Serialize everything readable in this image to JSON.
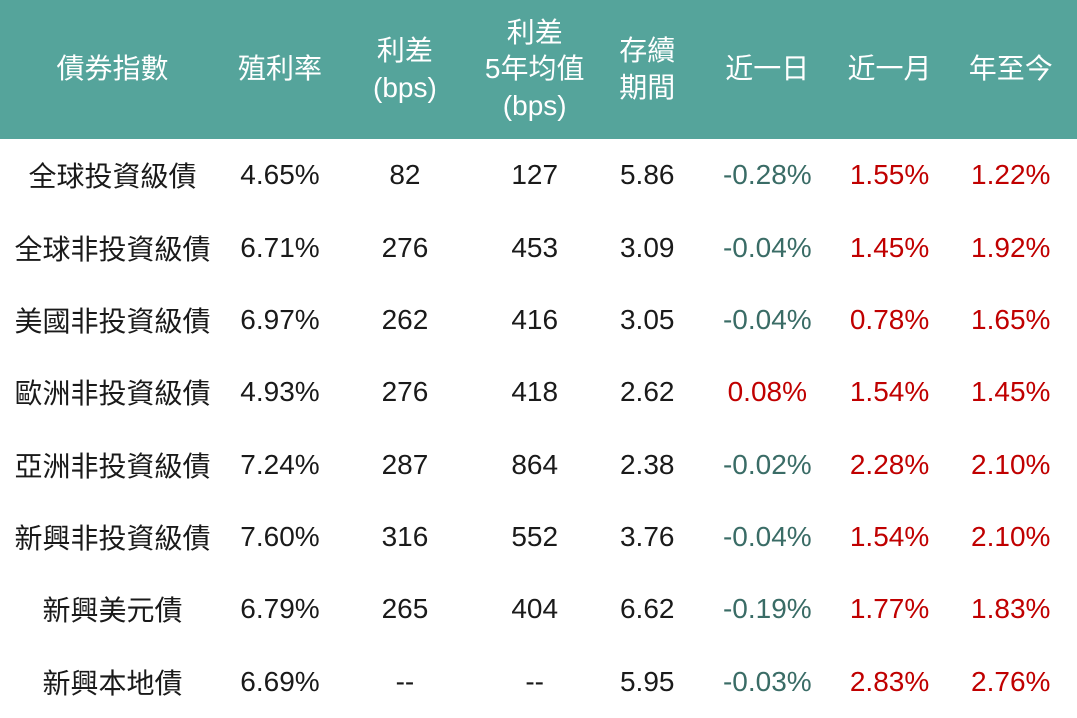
{
  "chart_data": {
    "type": "table",
    "columns": [
      "債券指數",
      "殖利率",
      "利差\n(bps)",
      "利差\n5年均值\n(bps)",
      "存續\n期間",
      "近一日",
      "近一月",
      "年至今"
    ],
    "rows": [
      [
        "全球投資級債",
        "4.65%",
        "82",
        "127",
        "5.86",
        "-0.28%",
        "1.55%",
        "1.22%"
      ],
      [
        "全球非投資級債",
        "6.71%",
        "276",
        "453",
        "3.09",
        "-0.04%",
        "1.45%",
        "1.92%"
      ],
      [
        "美國非投資級債",
        "6.97%",
        "262",
        "416",
        "3.05",
        "-0.04%",
        "0.78%",
        "1.65%"
      ],
      [
        "歐洲非投資級債",
        "4.93%",
        "276",
        "418",
        "2.62",
        "0.08%",
        "1.54%",
        "1.45%"
      ],
      [
        "亞洲非投資級債",
        "7.24%",
        "287",
        "864",
        "2.38",
        "-0.02%",
        "2.28%",
        "2.10%"
      ],
      [
        "新興非投資級債",
        "7.60%",
        "316",
        "552",
        "3.76",
        "-0.04%",
        "1.54%",
        "2.10%"
      ],
      [
        "新興美元債",
        "6.79%",
        "265",
        "404",
        "6.62",
        "-0.19%",
        "1.77%",
        "1.83%"
      ],
      [
        "新興本地債",
        "6.69%",
        "--",
        "--",
        "5.95",
        "-0.03%",
        "2.83%",
        "2.76%"
      ]
    ]
  },
  "colors": {
    "header_bg": "#55A49B",
    "header_text": "#FFFFFF",
    "body_text": "#1A1A1A",
    "negative": "#3A6C66",
    "positive": "#C00000"
  }
}
